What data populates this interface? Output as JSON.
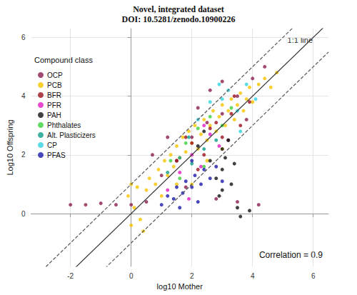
{
  "chart_data": {
    "type": "scatter",
    "title": "Novel, integrated dataset",
    "subtitle": "DOI: 10.5281/zenodo.10900226",
    "x_label": "log10 Mother",
    "y_label": "Log10 Offspring",
    "xlim": [
      -3.3,
      6.5
    ],
    "ylim": [
      -1.8,
      6.3
    ],
    "xticks": [
      -2,
      0,
      2,
      4,
      6
    ],
    "yticks": [
      0,
      2,
      4,
      6
    ],
    "grid": true,
    "legend": "top-left",
    "legend_title": "Compound class",
    "marker": "circle",
    "annotations": [
      "Correlation = 0.9"
    ],
    "reference_lines": [
      {
        "slope": 1,
        "intercept": 0,
        "line_style": "solid",
        "label": "1:1 line"
      },
      {
        "slope": 1,
        "intercept": 1,
        "line_style": "dashed"
      },
      {
        "slope": 1,
        "intercept": -1,
        "line_style": "dashed"
      }
    ],
    "series": [
      {
        "name": "OCP",
        "color": "#8b1e4f",
        "x": [
          -2,
          -1.5,
          -1,
          -0.5,
          0,
          0.5,
          1.0,
          1.5,
          2.0,
          2.5,
          3.0,
          3.5,
          4.0,
          4.4,
          1.2,
          2.2,
          3.2,
          3.8,
          4.2,
          3.5,
          2.8,
          2.6,
          1.8,
          0.7,
          3.0
        ],
        "values": [
          0.3,
          0.3,
          0.35,
          0.3,
          0.3,
          0.4,
          1.3,
          1.8,
          2.6,
          3.1,
          3.4,
          4.0,
          4.6,
          5.0,
          2.6,
          3.6,
          2.5,
          3.2,
          0.3,
          0.4,
          0.5,
          4.2,
          0.9,
          2.0,
          4.5
        ]
      },
      {
        "name": "PCB",
        "color": "#f5c400",
        "x": [
          0,
          0.1,
          -0.1,
          0.2,
          0.3,
          0.5,
          0.6,
          0.8,
          0.9,
          1.0,
          1.1,
          1.2,
          1.3,
          1.4,
          1.5,
          1.6,
          1.7,
          1.8,
          1.9,
          2.0,
          2.1,
          2.2,
          2.3,
          2.4,
          2.5,
          2.6,
          2.7,
          2.8,
          2.9,
          3.0,
          3.1,
          3.2,
          3.3,
          3.4,
          3.5,
          3.6,
          3.7,
          3.8,
          3.9,
          4.0,
          4.2,
          4.4,
          4.6,
          4.8,
          2.0,
          2.5,
          1.5,
          0.4,
          0.0,
          3.0
        ],
        "values": [
          -0.4,
          0.2,
          0.6,
          0.9,
          -0.2,
          0.8,
          1.2,
          1.0,
          1.5,
          0.6,
          1.8,
          1.3,
          2.0,
          1.6,
          2.3,
          1.9,
          2.6,
          2.1,
          2.8,
          2.4,
          3.0,
          2.2,
          2.7,
          3.2,
          2.5,
          3.0,
          3.5,
          2.8,
          3.3,
          3.7,
          3.0,
          3.5,
          3.9,
          3.2,
          3.7,
          4.1,
          3.5,
          3.9,
          4.3,
          3.8,
          4.4,
          4.6,
          4.3,
          4.8,
          1.0,
          1.8,
          1.0,
          -0.6,
          1.0,
          2.2
        ]
      },
      {
        "name": "BFR",
        "color": "#9b111e",
        "x": [
          1.5,
          2.0,
          2.4,
          2.8,
          3.0,
          3.3,
          3.6,
          3.9,
          2.2,
          1.8,
          3.4,
          2.6
        ],
        "values": [
          1.8,
          2.4,
          2.0,
          3.1,
          2.6,
          3.4,
          3.0,
          3.8,
          1.5,
          2.6,
          4.0,
          2.9
        ]
      },
      {
        "name": "PFR",
        "color": "#e31ac2",
        "x": [
          1.2,
          1.6,
          2.0,
          2.3,
          2.6,
          2.9,
          1.9,
          2.4
        ],
        "values": [
          0.8,
          1.4,
          2.0,
          1.6,
          2.7,
          2.3,
          0.5,
          3.0
        ]
      },
      {
        "name": "PAH",
        "color": "#111111",
        "x": [
          2.6,
          2.8,
          2.9,
          3.0,
          3.0,
          3.0,
          3.1,
          3.2,
          3.3,
          3.5,
          3.6,
          3.9,
          2.4,
          2.2,
          3.4
        ],
        "values": [
          1.8,
          1.2,
          0.6,
          2.2,
          1.5,
          0.8,
          1.9,
          2.5,
          1.0,
          0.2,
          -0.1,
          0.1,
          2.8,
          2.3,
          1.7
        ]
      },
      {
        "name": "Phthalates",
        "color": "#3bd13b",
        "x": [
          1.3,
          1.8,
          2.2,
          2.6,
          3.0,
          3.3,
          2.4,
          1.6
        ],
        "values": [
          1.8,
          2.4,
          2.9,
          3.3,
          3.0,
          3.6,
          1.6,
          1.2
        ]
      },
      {
        "name": "Alt. Plasticizers",
        "color": "#0f9e8a",
        "x": [
          1.2,
          1.6,
          2.0,
          2.4,
          2.8,
          1.9
        ],
        "values": [
          1.4,
          1.9,
          1.7,
          2.2,
          2.5,
          2.6
        ]
      },
      {
        "name": "CP",
        "color": "#2fd3e0",
        "x": [
          2.2,
          2.6,
          3.0,
          3.2,
          3.5,
          3.8,
          4.1,
          2.9,
          3.6
        ],
        "values": [
          3.2,
          3.8,
          3.9,
          4.2,
          3.5,
          4.4,
          3.9,
          4.4,
          2.8
        ]
      },
      {
        "name": "PFAS",
        "color": "#1c1ca8",
        "x": [
          1.0,
          1.2,
          1.4,
          1.5,
          1.7,
          1.8,
          2.0,
          2.1,
          2.3,
          2.4,
          2.6,
          2.8,
          1.6,
          2.2,
          3.0,
          2.0
        ],
        "values": [
          0.3,
          0.6,
          0.5,
          0.9,
          0.7,
          1.1,
          0.9,
          1.3,
          1.0,
          1.5,
          1.2,
          1.6,
          0.2,
          0.4,
          1.1,
          1.8
        ]
      }
    ]
  }
}
